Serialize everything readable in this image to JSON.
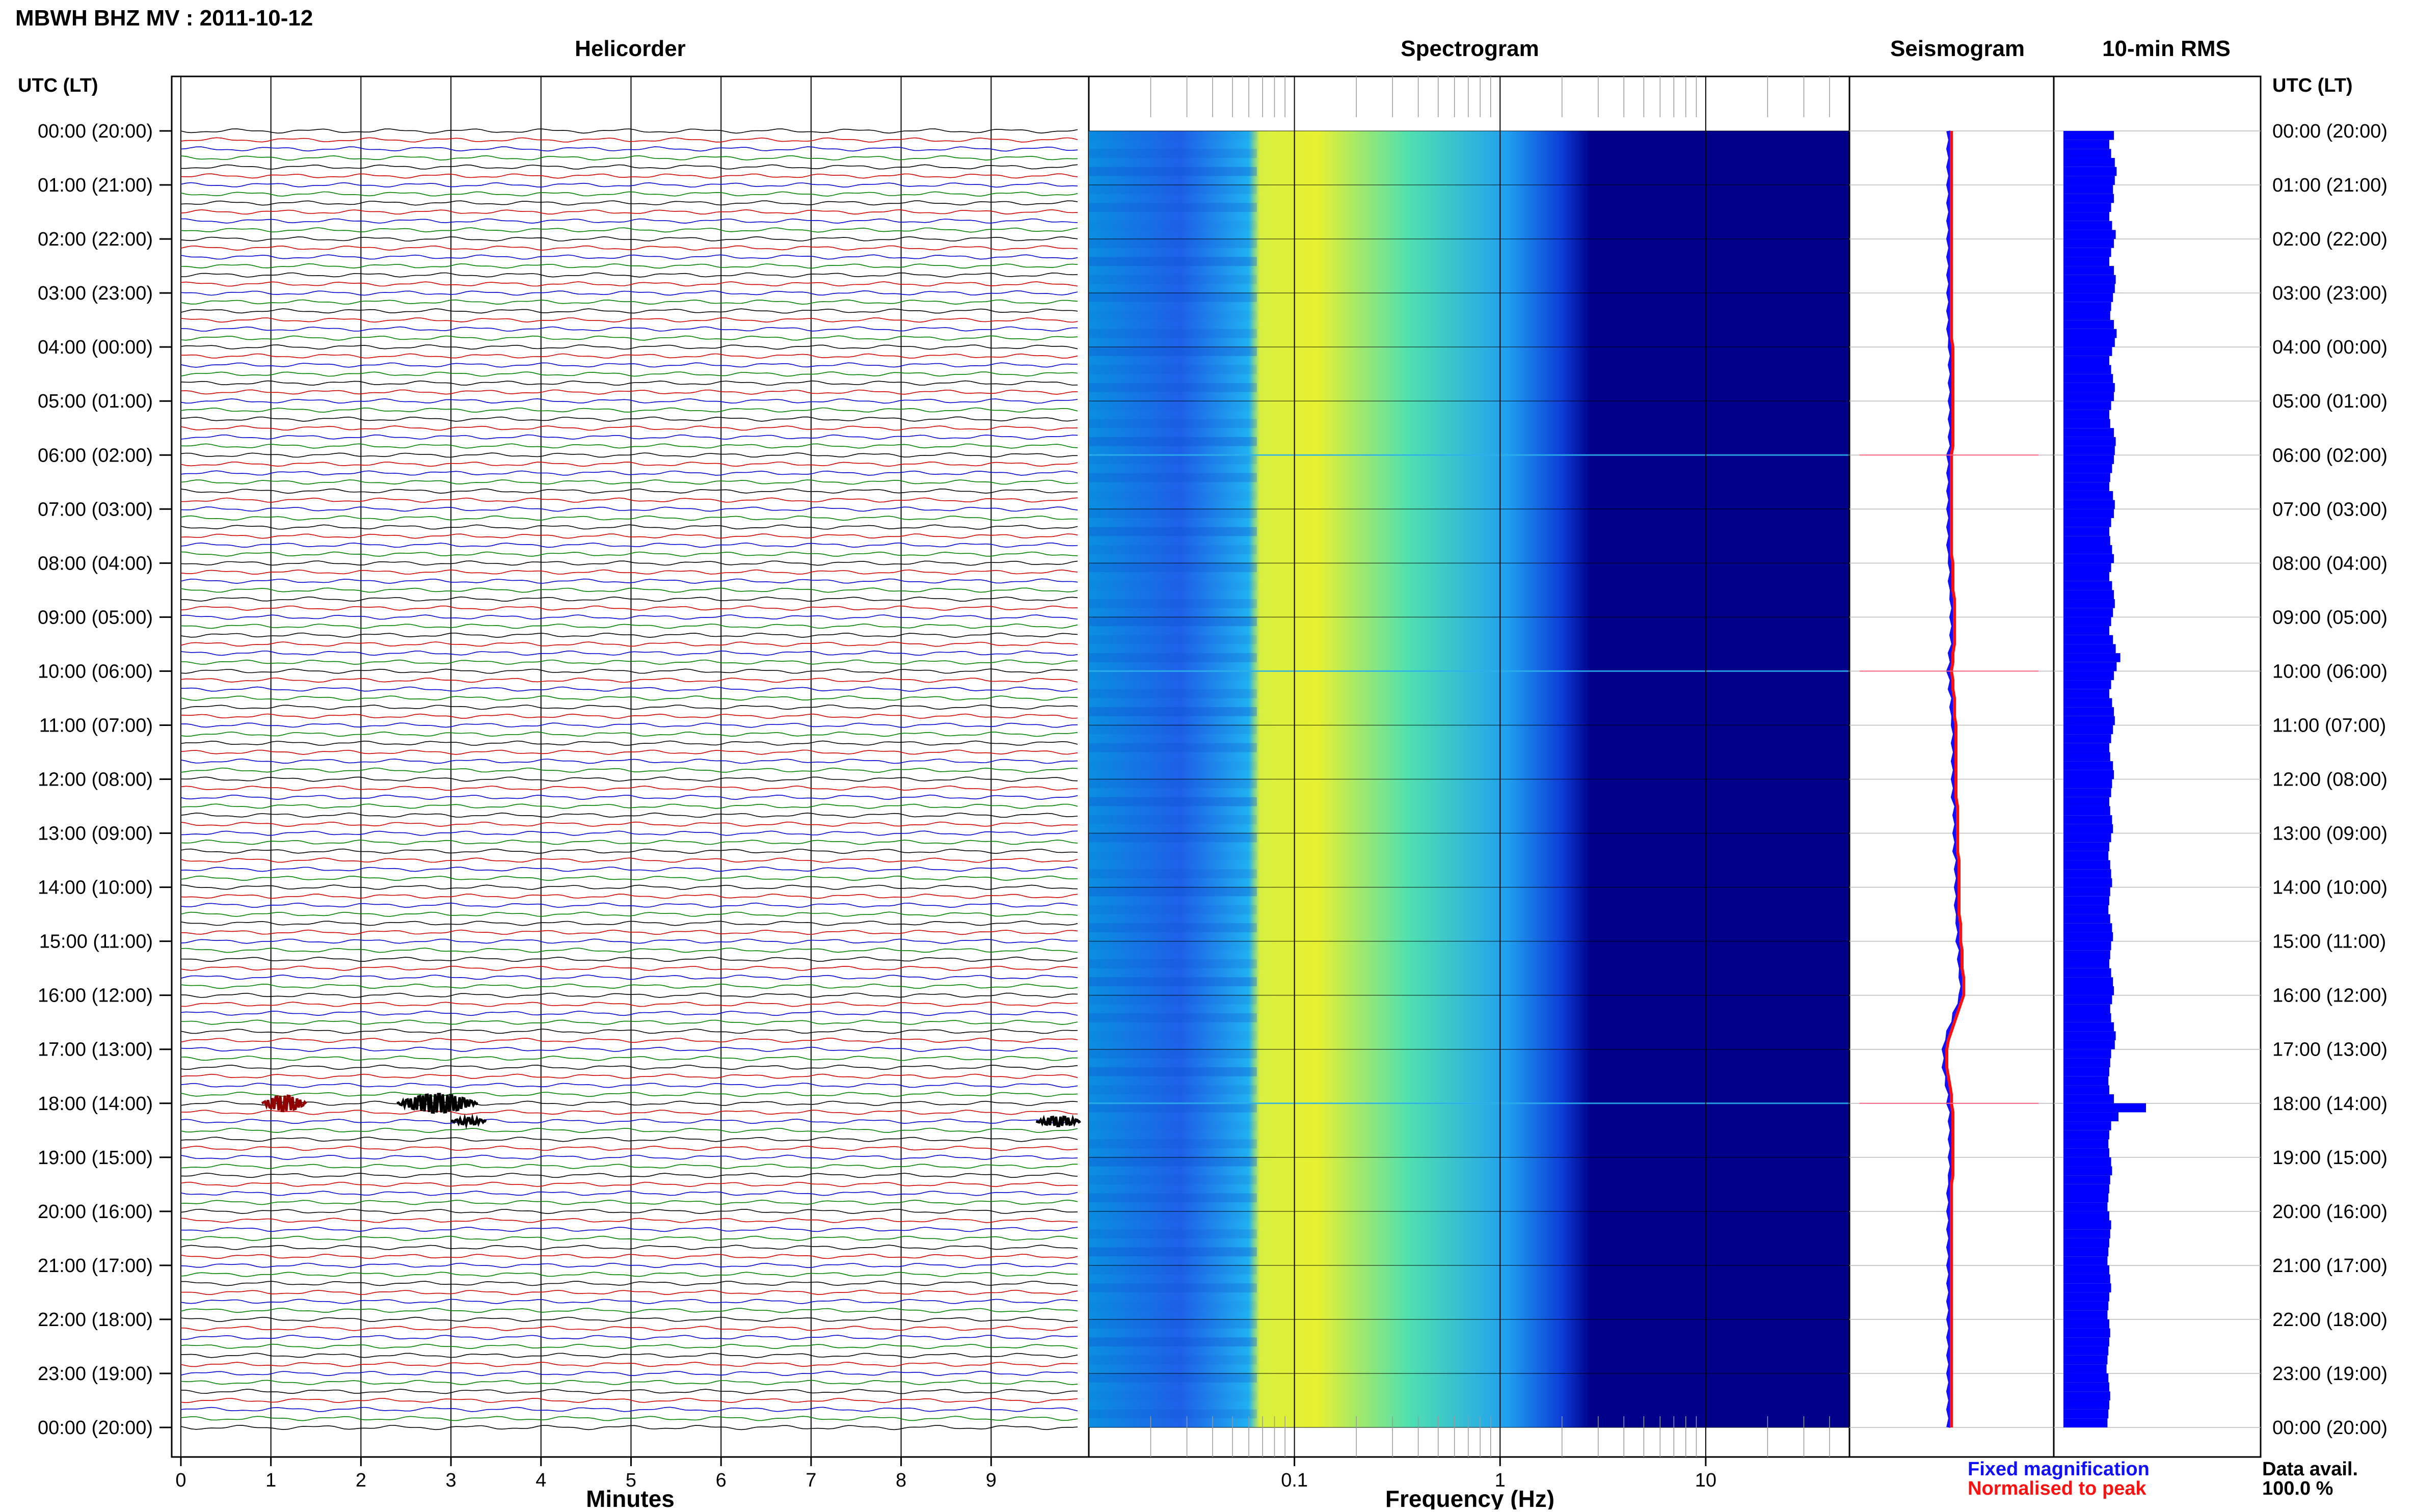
{
  "header": {
    "station_title": "MBWH BHZ MV : 2011-10-12"
  },
  "panels": {
    "helicorder": {
      "title": "Helicorder",
      "xlabel": "Minutes"
    },
    "spectrogram": {
      "title": "Spectrogram",
      "xlabel": "Frequency (Hz)"
    },
    "seismogram": {
      "title": "Seismogram"
    },
    "rms": {
      "title": "10-min RMS"
    }
  },
  "axis": {
    "utc_header": "UTC (LT)",
    "hour_labels": [
      "00:00 (20:00)",
      "01:00 (21:00)",
      "02:00 (22:00)",
      "03:00 (23:00)",
      "04:00 (00:00)",
      "05:00 (01:00)",
      "06:00 (02:00)",
      "07:00 (03:00)",
      "08:00 (04:00)",
      "09:00 (05:00)",
      "10:00 (06:00)",
      "11:00 (07:00)",
      "12:00 (08:00)",
      "13:00 (09:00)",
      "14:00 (10:00)",
      "15:00 (11:00)",
      "16:00 (12:00)",
      "17:00 (13:00)",
      "18:00 (14:00)",
      "19:00 (15:00)",
      "20:00 (16:00)",
      "21:00 (17:00)",
      "22:00 (18:00)",
      "23:00 (19:00)",
      "00:00 (20:00)"
    ],
    "minute_ticks": [
      "0",
      "1",
      "2",
      "3",
      "4",
      "5",
      "6",
      "7",
      "8",
      "9"
    ],
    "freq_ticks": [
      "0.1",
      "1",
      "10"
    ]
  },
  "legend": {
    "fixed": "Fixed magnification",
    "normalised": "Normalised to peak",
    "fixed_color": "#1010ff",
    "normalised_color": "#ff1010"
  },
  "availability": {
    "label": "Data avail.",
    "value": "100.0 %"
  },
  "colors": {
    "trace_cycle": [
      "#000000",
      "#d00000",
      "#0000d0",
      "#008000"
    ],
    "spectrogram_low": "#00008b",
    "rms_bar": "#0000ff"
  },
  "chart_data": [
    {
      "type": "line",
      "panel": "helicorder",
      "x_unit": "minutes",
      "xlim": [
        0,
        10
      ],
      "rows": 144,
      "row_minutes": 10,
      "events": [
        {
          "row": 108,
          "start_min": 0.9,
          "end_min": 1.4,
          "amp": 5,
          "color": "#900000"
        },
        {
          "row": 108,
          "start_min": 2.4,
          "end_min": 3.3,
          "amp": 6,
          "color": "#000000"
        },
        {
          "row": 110,
          "start_min": 3.0,
          "end_min": 3.4,
          "amp": 2,
          "color": "#000000"
        },
        {
          "row": 110,
          "start_min": 9.5,
          "end_min": 10.0,
          "amp": 3,
          "color": "#000000"
        }
      ]
    },
    {
      "type": "heatmap",
      "panel": "spectrogram",
      "x_scale": "log",
      "xlim": [
        0.01,
        50
      ],
      "rows": 144,
      "energy_peak_hz": 0.2,
      "hot_rows": [
        36,
        60,
        108
      ]
    },
    {
      "type": "line",
      "panel": "seismogram",
      "series": [
        {
          "name": "Fixed magnification"
        },
        {
          "name": "Normalised to peak"
        }
      ],
      "row_offsets": [
        0,
        0,
        0,
        0,
        0,
        0,
        0,
        0,
        0,
        0,
        0,
        0,
        0,
        0,
        0,
        0,
        0,
        0,
        0,
        0,
        0,
        0,
        0,
        0,
        1,
        1,
        1,
        1,
        1,
        1,
        1,
        1,
        1,
        1,
        1,
        1,
        0,
        0,
        0,
        0,
        0,
        0,
        0,
        0,
        0,
        0,
        0,
        0,
        1,
        1,
        1,
        1,
        2,
        2,
        2,
        2,
        2,
        2,
        1,
        1,
        0,
        1,
        1,
        2,
        2,
        2,
        3,
        3,
        3,
        3,
        3,
        3,
        3,
        3,
        3,
        4,
        4,
        4,
        4,
        4,
        4,
        5,
        5,
        5,
        5,
        5,
        5,
        5,
        6,
        6,
        6,
        7,
        7,
        7,
        8,
        8,
        8,
        6,
        4,
        2,
        0,
        -2,
        -3,
        -3,
        -3,
        -2,
        -1,
        0,
        0,
        1,
        1,
        1,
        1,
        1,
        1,
        1,
        1,
        0,
        0,
        0,
        0,
        0,
        0,
        0,
        0,
        0,
        0,
        0,
        0,
        0,
        0,
        0,
        0,
        0,
        0,
        0,
        0,
        0,
        0,
        0,
        0,
        0,
        0,
        0,
        0
      ]
    },
    {
      "type": "bar",
      "panel": "rms",
      "orientation": "horizontal",
      "rows": 144,
      "values": [
        0.55,
        0.5,
        0.52,
        0.56,
        0.58,
        0.56,
        0.54,
        0.55,
        0.52,
        0.5,
        0.53,
        0.57,
        0.55,
        0.52,
        0.5,
        0.55,
        0.57,
        0.56,
        0.54,
        0.52,
        0.51,
        0.55,
        0.58,
        0.56,
        0.53,
        0.5,
        0.52,
        0.54,
        0.56,
        0.55,
        0.52,
        0.5,
        0.51,
        0.55,
        0.57,
        0.56,
        0.55,
        0.53,
        0.51,
        0.5,
        0.54,
        0.56,
        0.55,
        0.52,
        0.5,
        0.51,
        0.53,
        0.55,
        0.52,
        0.5,
        0.53,
        0.55,
        0.56,
        0.54,
        0.52,
        0.5,
        0.54,
        0.57,
        0.62,
        0.58,
        0.55,
        0.52,
        0.5,
        0.53,
        0.55,
        0.56,
        0.54,
        0.52,
        0.5,
        0.51,
        0.54,
        0.55,
        0.53,
        0.52,
        0.5,
        0.51,
        0.53,
        0.54,
        0.52,
        0.5,
        0.49,
        0.51,
        0.52,
        0.53,
        0.51,
        0.5,
        0.49,
        0.51,
        0.53,
        0.54,
        0.52,
        0.51,
        0.5,
        0.52,
        0.54,
        0.55,
        0.53,
        0.51,
        0.52,
        0.55,
        0.57,
        0.56,
        0.52,
        0.51,
        0.5,
        0.49,
        0.5,
        0.55,
        0.9,
        0.6,
        0.52,
        0.5,
        0.49,
        0.5,
        0.52,
        0.53,
        0.51,
        0.5,
        0.49,
        0.48,
        0.5,
        0.52,
        0.51,
        0.5,
        0.49,
        0.48,
        0.5,
        0.51,
        0.52,
        0.5,
        0.49,
        0.48,
        0.5,
        0.51,
        0.5,
        0.49,
        0.48,
        0.47,
        0.49,
        0.5,
        0.51,
        0.5,
        0.49,
        0.48
      ]
    }
  ]
}
